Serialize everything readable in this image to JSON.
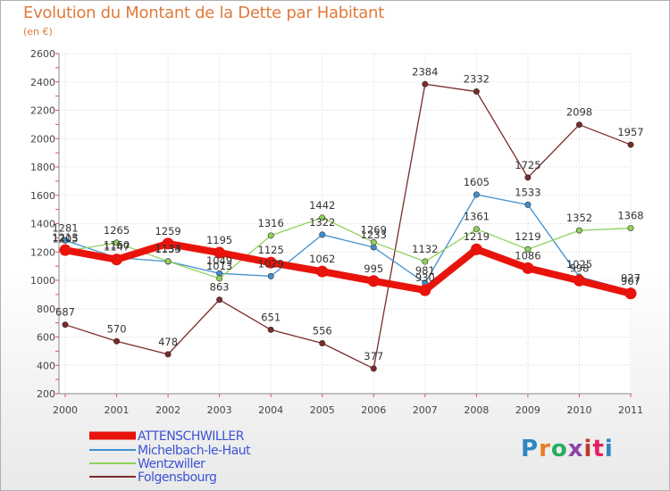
{
  "title": "Evolution du Montant de la Dette par Habitant",
  "subtitle": "(en €)",
  "logo": {
    "text": "Proxiti",
    "letter_colors": [
      "#2e86c1",
      "#e67e22",
      "#27ae60",
      "#8e44ad",
      "#c0392b",
      "#e91e63",
      "#2e86c1"
    ]
  },
  "chart_data": {
    "type": "line",
    "x": [
      "2000",
      "2001",
      "2002",
      "2003",
      "2004",
      "2005",
      "2006",
      "2007",
      "2008",
      "2009",
      "2010",
      "2011"
    ],
    "ylim": [
      200,
      2600
    ],
    "yticks": [
      "200",
      "400",
      "600",
      "800",
      "1000",
      "1200",
      "1400",
      "1600",
      "1800",
      "2000",
      "2200",
      "2400",
      "2600"
    ],
    "grid": true,
    "legend_position": "bottom-left",
    "series": [
      {
        "name": "Folgensbourg",
        "color": "#7a2a2a",
        "values": [
          687,
          570,
          478,
          863,
          651,
          556,
          377,
          2384,
          2332,
          1725,
          2098,
          1957
        ],
        "labels": [
          "687",
          "570",
          "478",
          "863",
          "651",
          "556",
          "377",
          "2384",
          "2332",
          "1725",
          "2098",
          "1957"
        ]
      },
      {
        "name": "Michelbach-le-Haut",
        "color": "#3f8fce",
        "values": [
          1281,
          1160,
          1133,
          1049,
          1029,
          1322,
          1233,
          981,
          1605,
          1533,
          1025,
          927
        ],
        "labels": [
          "1281",
          "1160",
          "1133",
          "1049",
          "1029",
          "1322",
          "1233",
          "981",
          "1605",
          "1533",
          "1025",
          "927"
        ]
      },
      {
        "name": "Wentzwiller",
        "color": "#8fd15a",
        "values": [
          1205,
          1265,
          1134,
          1013,
          1316,
          1442,
          1269,
          1132,
          1361,
          1219,
          1352,
          1368
        ],
        "labels": [
          "1205",
          "1265",
          "1134",
          "1013",
          "1316",
          "1442",
          "1269",
          "1132",
          "1361",
          "1219",
          "1352",
          "1368"
        ]
      },
      {
        "name": "ATTENSCHWILLER",
        "color": "#e8140c",
        "values": [
          1213,
          1147,
          1259,
          1195,
          1125,
          1062,
          995,
          930,
          1219,
          1086,
          998,
          907
        ],
        "labels": [
          "1213",
          "1147",
          "1259",
          "1195",
          "1125",
          "1062",
          "995",
          "930",
          "1219",
          "1086",
          "998",
          "907"
        ]
      }
    ],
    "legend": [
      "ATTENSCHWILLER",
      "Michelbach-le-Haut",
      "Wentzwiller",
      "Folgensbourg"
    ]
  }
}
